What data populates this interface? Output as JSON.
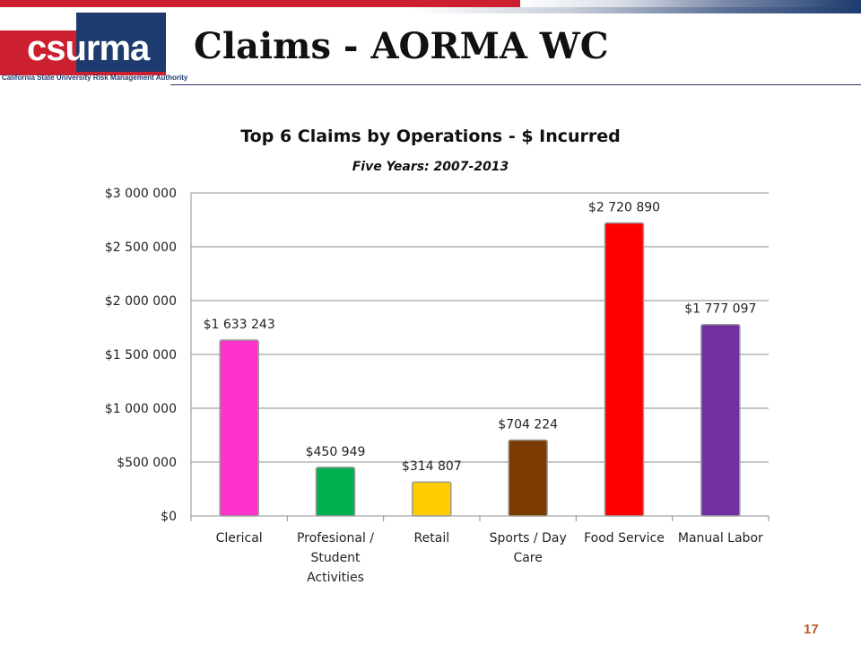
{
  "slide": {
    "title": "Claims - AORMA WC",
    "page_number": "17"
  },
  "logo": {
    "text": "csurma",
    "tagline": "California State University Risk Management Authority"
  },
  "colors": {
    "brand_red": "#cc1f2f",
    "brand_blue": "#1d3b6e"
  },
  "chart_data": {
    "type": "bar",
    "title": "Top 6 Claims by Operations - $ Incurred",
    "subtitle": "Five Years: 2007-2013",
    "categories": [
      [
        "Clerical"
      ],
      [
        "Profesional /",
        "Student",
        "Activities"
      ],
      [
        "Retail"
      ],
      [
        "Sports / Day",
        "Care"
      ],
      [
        "Food Service"
      ],
      [
        "Manual Labor"
      ]
    ],
    "values": [
      1633243,
      450949,
      314807,
      704224,
      2720890,
      1777097
    ],
    "value_labels": [
      "$1 633 243",
      "$450 949",
      "$314 807",
      "$704 224",
      "$2 720 890",
      "$1 777 097"
    ],
    "bar_colors": [
      "#ff33cc",
      "#00b050",
      "#ffcc00",
      "#7a3a00",
      "#ff0000",
      "#7030a0"
    ],
    "ylim": [
      0,
      3000000
    ],
    "yticks": [
      0,
      500000,
      1000000,
      1500000,
      2000000,
      2500000,
      3000000
    ],
    "ytick_labels": [
      "$0",
      "$500 000",
      "$1 000 000",
      "$1 500 000",
      "$2 000 000",
      "$2 500 000",
      "$3 000 000"
    ],
    "grid": true,
    "legend": "none"
  }
}
